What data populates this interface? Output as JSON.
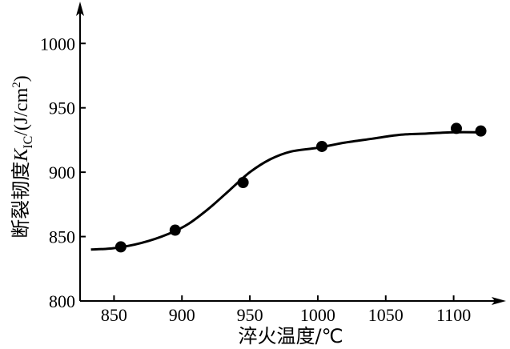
{
  "chart_data": {
    "type": "scatter",
    "xlabel": "淬火温度/℃",
    "ylabel": {
      "prefix": "断裂韧度",
      "symbol": "K",
      "subscript": "IC",
      "unit_pre": "/(J/cm",
      "superscript": "2",
      "unit_post": ")"
    },
    "xlim": [
      825,
      1135
    ],
    "ylim": [
      800,
      1030
    ],
    "x_ticks": [
      850,
      900,
      950,
      1000,
      1050,
      1100
    ],
    "y_ticks": [
      800,
      850,
      900,
      950,
      1000
    ],
    "x_tick_labels": [
      "850",
      "900",
      "950",
      "1000",
      "1050",
      "1100"
    ],
    "y_tick_labels": [
      "800",
      "850",
      "900",
      "950",
      "1000"
    ],
    "grid": false,
    "series": [
      {
        "kind": "points",
        "color": "#000000",
        "x": [
          855,
          895,
          945,
          1003,
          1102,
          1120
        ],
        "y": [
          842,
          855,
          892,
          920,
          934,
          932
        ]
      },
      {
        "kind": "line",
        "color": "#000000",
        "x": [
          833,
          850,
          870,
          890,
          905,
          920,
          935,
          950,
          965,
          980,
          1000,
          1020,
          1040,
          1060,
          1080,
          1100,
          1120
        ],
        "y": [
          840,
          841,
          845,
          852,
          860,
          872,
          886,
          900,
          910,
          916,
          919,
          923,
          926,
          929,
          930,
          931,
          931
        ]
      }
    ]
  }
}
